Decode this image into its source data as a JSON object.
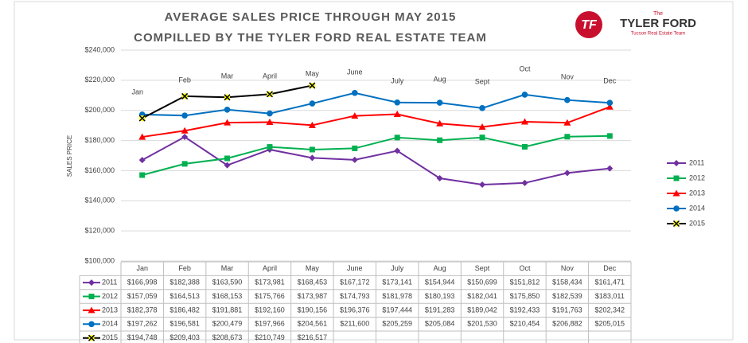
{
  "chart_data": {
    "type": "line",
    "title": "AVERAGE SALES PRICE THROUGH MAY 2015",
    "subtitle": "COMPILLED BY THE TYLER FORD REAL ESTATE TEAM",
    "logo": {
      "mark": "TF",
      "top": "The",
      "name": "TYLER FORD",
      "tagline": "Tucson Real Estate Team"
    },
    "y_label": "SALES PRICE",
    "categories": [
      "Jan",
      "Feb",
      "Mar",
      "April",
      "May",
      "June",
      "July",
      "Aug",
      "Sept",
      "Oct",
      "Nov",
      "Dec"
    ],
    "ylim": [
      100000,
      240000
    ],
    "yticks": [
      {
        "value": 100000,
        "label": "$100,000"
      },
      {
        "value": 120000,
        "label": "$120,000"
      },
      {
        "value": 140000,
        "label": "$140,000"
      },
      {
        "value": 160000,
        "label": "$160,000"
      },
      {
        "value": 180000,
        "label": "$180,000"
      },
      {
        "value": 200000,
        "label": "$200,000"
      },
      {
        "value": 220000,
        "label": "$220,000"
      },
      {
        "value": 240000,
        "label": "$240,000"
      }
    ],
    "grid": true,
    "legend": "right",
    "series": [
      {
        "name": "2011",
        "color": "#7030a0",
        "marker": "diamond",
        "values": [
          166998,
          182388,
          163590,
          173981,
          168453,
          167172,
          173141,
          154944,
          150699,
          151812,
          158434,
          161471
        ],
        "value_labels": [
          "$166,998",
          "$182,388",
          "$163,590",
          "$173,981",
          "$168,453",
          "$167,172",
          "$173,141",
          "$154,944",
          "$150,699",
          "$151,812",
          "$158,434",
          "$161,471"
        ]
      },
      {
        "name": "2012",
        "color": "#00b050",
        "marker": "square",
        "values": [
          157059,
          164513,
          168153,
          175766,
          173987,
          174793,
          181978,
          180193,
          182041,
          175850,
          182539,
          183011
        ],
        "value_labels": [
          "$157,059",
          "$164,513",
          "$168,153",
          "$175,766",
          "$173,987",
          "$174,793",
          "$181,978",
          "$180,193",
          "$182,041",
          "$175,850",
          "$182,539",
          "$183,011"
        ]
      },
      {
        "name": "2013",
        "color": "#ff0000",
        "marker": "triangle",
        "values": [
          182378,
          186482,
          191881,
          192160,
          190156,
          196376,
          197444,
          191283,
          189042,
          192433,
          191763,
          202342
        ],
        "value_labels": [
          "$182,378",
          "$186,482",
          "$191,881",
          "$192,160",
          "$190,156",
          "$196,376",
          "$197,444",
          "$191,283",
          "$189,042",
          "$192,433",
          "$191,763",
          "$202,342"
        ]
      },
      {
        "name": "2014",
        "color": "#0070c0",
        "marker": "circle",
        "values": [
          197262,
          196581,
          200479,
          197966,
          204561,
          211600,
          205259,
          205084,
          201530,
          210454,
          206882,
          205015
        ],
        "value_labels": [
          "$197,262",
          "$196,581",
          "$200,479",
          "$197,966",
          "$204,561",
          "$211,600",
          "$205,259",
          "$205,084",
          "$201,530",
          "$210,454",
          "$206,882",
          "$205,015"
        ]
      },
      {
        "name": "2015",
        "color": "#000000",
        "marker": "x",
        "values": [
          194748,
          209403,
          208673,
          210749,
          216517,
          null,
          null,
          null,
          null,
          null,
          null,
          null
        ],
        "value_labels": [
          "$194,748",
          "$209,403",
          "$208,673",
          "$210,749",
          "$216,517",
          null,
          null,
          null,
          null,
          null,
          null,
          null
        ]
      }
    ]
  }
}
